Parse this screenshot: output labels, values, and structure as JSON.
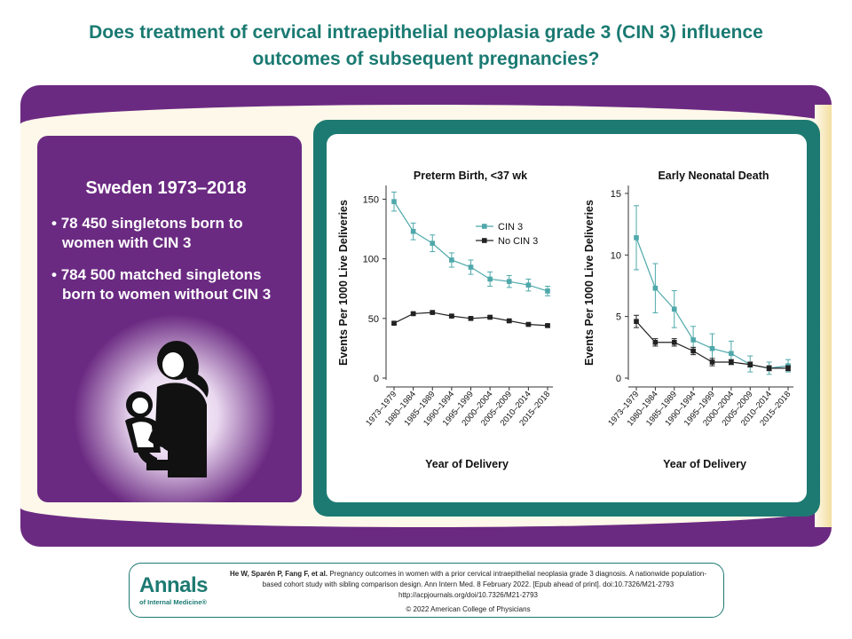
{
  "title": "Does treatment of cervical intraepithelial neoplasia grade 3 (CIN 3) influence outcomes of subsequent pregnancies?",
  "info": {
    "heading": "Sweden 1973–2018",
    "bullets": [
      "78 450 singletons born to women with CIN 3",
      "784 500 matched singletons born to women without CIN 3"
    ]
  },
  "colors": {
    "teal": "#1d7a72",
    "purple": "#6b2a82",
    "cin3": "#4fa8aa",
    "no_cin3": "#222222"
  },
  "chart_data": [
    {
      "type": "line",
      "title": "Preterm Birth, <37 wk",
      "xlabel": "Year of Delivery",
      "ylabel": "Events Per 1000 Live Deliveries",
      "categories": [
        "1973–1979",
        "1980–1984",
        "1985–1989",
        "1990–1994",
        "1995–1999",
        "2000–2004",
        "2005–2009",
        "2010–2014",
        "2015–2018"
      ],
      "yticks": [
        0,
        50,
        100,
        150
      ],
      "ylim": [
        0,
        160
      ],
      "legend_position": "top-right",
      "series": [
        {
          "name": "CIN 3",
          "values": [
            148,
            123,
            113,
            99,
            93,
            83,
            81,
            78,
            73
          ],
          "err_low": [
            140,
            116,
            106,
            93,
            87,
            77,
            76,
            73,
            69
          ],
          "err_high": [
            156,
            130,
            120,
            105,
            99,
            89,
            86,
            83,
            77
          ]
        },
        {
          "name": "No CIN 3",
          "values": [
            46,
            54,
            55,
            52,
            50,
            51,
            48,
            45,
            44
          ],
          "err_low": [
            45,
            53,
            54,
            51,
            49,
            50,
            47,
            44,
            43
          ],
          "err_high": [
            47,
            55,
            56,
            53,
            51,
            52,
            49,
            46,
            45
          ]
        }
      ]
    },
    {
      "type": "line",
      "title": "Early Neonatal Death",
      "xlabel": "Year of Delivery",
      "ylabel": "Events Per 1000 Live Deliveries",
      "categories": [
        "1973–1979",
        "1980–1984",
        "1985–1989",
        "1990–1994",
        "1995–1999",
        "2000–2004",
        "2005–2009",
        "2010–2014",
        "2015–2018"
      ],
      "yticks": [
        0,
        5,
        10,
        15
      ],
      "ylim": [
        0,
        15.5
      ],
      "series": [
        {
          "name": "CIN 3",
          "values": [
            11.4,
            7.3,
            5.6,
            3.1,
            2.4,
            2.0,
            1.1,
            0.8,
            1.0
          ],
          "err_low": [
            8.8,
            5.3,
            4.1,
            2.1,
            1.4,
            1.1,
            0.5,
            0.3,
            0.5
          ],
          "err_high": [
            14.0,
            9.3,
            7.1,
            4.2,
            3.6,
            3.0,
            1.8,
            1.3,
            1.5
          ]
        },
        {
          "name": "No CIN 3",
          "values": [
            4.6,
            2.9,
            2.9,
            2.2,
            1.3,
            1.3,
            1.1,
            0.8,
            0.8
          ],
          "err_low": [
            4.1,
            2.6,
            2.6,
            1.9,
            1.0,
            1.1,
            0.9,
            0.6,
            0.6
          ],
          "err_high": [
            5.1,
            3.2,
            3.2,
            2.5,
            1.6,
            1.5,
            1.3,
            1.0,
            1.0
          ]
        }
      ]
    }
  ],
  "journal": {
    "name": "Annals",
    "subtitle": "of Internal Medicine®"
  },
  "citation": {
    "authors": "He W, Sparén P, Fang F, et al.",
    "text": "Pregnancy outcomes in women with a prior cervical intraepithelial neoplasia grade 3 diagnosis. A nationwide population-based cohort study with sibling comparison design. Ann Intern Med. 8 February 2022. [Epub ahead of print]. doi:10.7326/M21-2793",
    "url": "http://acpjournals.org/doi/10.7326/M21-2793",
    "copyright": "© 2022 American College of Physicians"
  }
}
